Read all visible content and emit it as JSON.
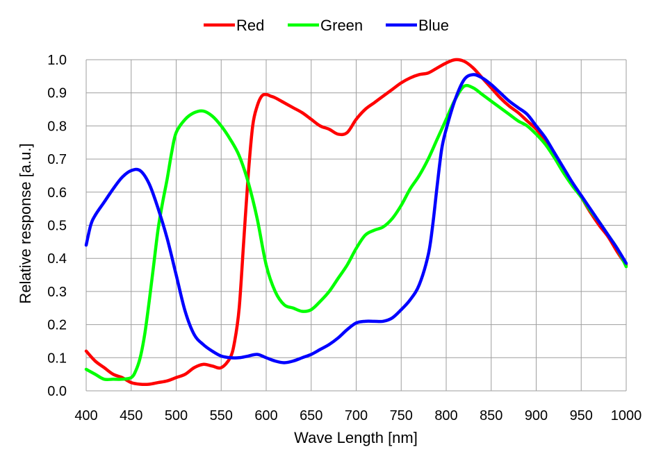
{
  "chart_data": {
    "type": "line",
    "xlabel": "Wave Length [nm]",
    "ylabel": "Relative response [a.u.]",
    "xlim": [
      400,
      1000
    ],
    "ylim": [
      0.0,
      1.0
    ],
    "x_ticks": [
      "400",
      "450",
      "500",
      "550",
      "600",
      "650",
      "700",
      "750",
      "800",
      "850",
      "900",
      "950",
      "1000"
    ],
    "y_ticks": [
      "0.0",
      "0.1",
      "0.2",
      "0.3",
      "0.4",
      "0.5",
      "0.6",
      "0.7",
      "0.8",
      "0.9",
      "1.0"
    ],
    "grid": true,
    "legend_position": "top-center",
    "series": [
      {
        "name": "Red",
        "color": "#ff0000",
        "x": [
          400,
          410,
          420,
          430,
          440,
          450,
          460,
          470,
          480,
          490,
          500,
          510,
          520,
          530,
          540,
          550,
          560,
          565,
          570,
          575,
          580,
          585,
          590,
          595,
          600,
          605,
          610,
          620,
          630,
          640,
          650,
          660,
          670,
          680,
          690,
          700,
          710,
          720,
          730,
          740,
          750,
          760,
          770,
          780,
          790,
          800,
          810,
          820,
          830,
          840,
          850,
          860,
          870,
          880,
          890,
          900,
          910,
          920,
          930,
          940,
          950,
          960,
          970,
          980,
          990,
          1000
        ],
        "y": [
          0.12,
          0.09,
          0.07,
          0.05,
          0.04,
          0.025,
          0.02,
          0.02,
          0.025,
          0.03,
          0.04,
          0.05,
          0.07,
          0.08,
          0.075,
          0.07,
          0.1,
          0.15,
          0.25,
          0.45,
          0.65,
          0.8,
          0.86,
          0.89,
          0.895,
          0.89,
          0.885,
          0.87,
          0.855,
          0.84,
          0.82,
          0.8,
          0.79,
          0.775,
          0.78,
          0.82,
          0.85,
          0.87,
          0.89,
          0.91,
          0.93,
          0.945,
          0.955,
          0.96,
          0.975,
          0.99,
          1.0,
          0.995,
          0.975,
          0.945,
          0.915,
          0.885,
          0.86,
          0.84,
          0.815,
          0.79,
          0.755,
          0.715,
          0.67,
          0.625,
          0.585,
          0.54,
          0.5,
          0.465,
          0.42,
          0.38
        ]
      },
      {
        "name": "Green",
        "color": "#00ff00",
        "x": [
          400,
          410,
          420,
          430,
          440,
          450,
          455,
          460,
          465,
          470,
          475,
          480,
          485,
          490,
          495,
          500,
          510,
          520,
          530,
          540,
          550,
          560,
          570,
          580,
          590,
          600,
          610,
          620,
          630,
          640,
          650,
          660,
          670,
          680,
          690,
          700,
          710,
          720,
          730,
          740,
          750,
          760,
          770,
          780,
          790,
          800,
          810,
          820,
          830,
          840,
          850,
          860,
          870,
          880,
          890,
          900,
          910,
          920,
          930,
          940,
          950,
          960,
          970,
          980,
          990,
          1000
        ],
        "y": [
          0.065,
          0.05,
          0.035,
          0.035,
          0.035,
          0.04,
          0.06,
          0.1,
          0.17,
          0.27,
          0.38,
          0.49,
          0.57,
          0.64,
          0.72,
          0.78,
          0.82,
          0.84,
          0.845,
          0.83,
          0.8,
          0.76,
          0.71,
          0.63,
          0.52,
          0.38,
          0.3,
          0.26,
          0.25,
          0.24,
          0.245,
          0.27,
          0.3,
          0.34,
          0.38,
          0.43,
          0.47,
          0.485,
          0.495,
          0.52,
          0.56,
          0.61,
          0.65,
          0.7,
          0.76,
          0.82,
          0.88,
          0.92,
          0.915,
          0.895,
          0.875,
          0.855,
          0.835,
          0.815,
          0.8,
          0.775,
          0.745,
          0.705,
          0.66,
          0.62,
          0.585,
          0.545,
          0.51,
          0.47,
          0.43,
          0.375
        ]
      },
      {
        "name": "Blue",
        "color": "#0000ff",
        "x": [
          400,
          405,
          410,
          420,
          430,
          440,
          450,
          460,
          470,
          480,
          490,
          500,
          510,
          520,
          530,
          540,
          550,
          560,
          570,
          580,
          590,
          600,
          610,
          620,
          630,
          640,
          650,
          660,
          670,
          680,
          690,
          700,
          710,
          720,
          730,
          740,
          750,
          760,
          770,
          780,
          785,
          790,
          795,
          800,
          810,
          820,
          830,
          840,
          850,
          860,
          870,
          880,
          890,
          900,
          910,
          920,
          930,
          940,
          950,
          960,
          970,
          980,
          990,
          1000
        ],
        "y": [
          0.44,
          0.5,
          0.53,
          0.57,
          0.61,
          0.645,
          0.665,
          0.665,
          0.625,
          0.55,
          0.46,
          0.35,
          0.24,
          0.17,
          0.14,
          0.12,
          0.105,
          0.1,
          0.1,
          0.105,
          0.11,
          0.1,
          0.09,
          0.085,
          0.09,
          0.1,
          0.11,
          0.125,
          0.14,
          0.16,
          0.185,
          0.205,
          0.21,
          0.21,
          0.21,
          0.22,
          0.245,
          0.275,
          0.32,
          0.41,
          0.5,
          0.62,
          0.73,
          0.79,
          0.88,
          0.94,
          0.955,
          0.945,
          0.925,
          0.9,
          0.875,
          0.855,
          0.835,
          0.8,
          0.765,
          0.72,
          0.675,
          0.63,
          0.59,
          0.55,
          0.51,
          0.47,
          0.43,
          0.385
        ]
      }
    ]
  }
}
